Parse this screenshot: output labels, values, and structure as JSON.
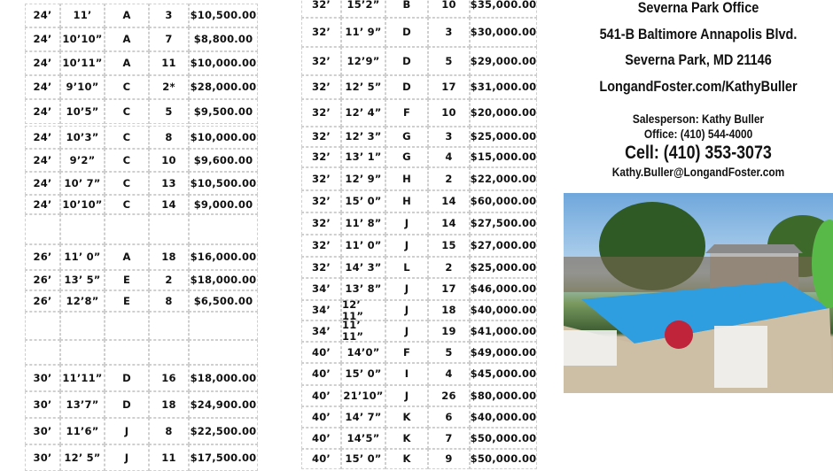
{
  "left_table": {
    "rows": [
      [
        "24’",
        "11’",
        "A",
        "3",
        "$10,500.00"
      ],
      [
        "24’",
        "10’10”",
        "A",
        "7",
        "$8,800.00"
      ],
      [
        "24’",
        "10’11”",
        "A",
        "11",
        "$10,000.00"
      ],
      [
        "24’",
        "9’10”",
        "C",
        "2*",
        "$28,000.00"
      ],
      [
        "24’",
        "10’5”",
        "C",
        "5",
        "$9,500.00"
      ],
      [
        "24’",
        "10’3”",
        "C",
        "8",
        "$10,000.00"
      ],
      [
        "24’",
        "9’2”",
        "C",
        "10",
        "$9,600.00"
      ],
      [
        "24’",
        "10’ 7”",
        "C",
        "13",
        "$10,500.00"
      ],
      [
        "24’",
        "10’10”",
        "C",
        "14",
        "$9,000.00"
      ],
      [
        "",
        "",
        "",
        "",
        ""
      ],
      [
        "26’",
        "11’ 0”",
        "A",
        "18",
        "$16,000.00"
      ],
      [
        "26’",
        "13’ 5”",
        "E",
        "2",
        "$18,000.00"
      ],
      [
        "26’",
        "12’8”",
        "E",
        "8",
        "$6,500.00"
      ],
      [
        "",
        "",
        "",
        "",
        ""
      ],
      [
        "",
        "",
        "",
        "",
        ""
      ],
      [
        "30’",
        "11’11”",
        "D",
        "16",
        "$18,000.00"
      ],
      [
        "30’",
        "13’7”",
        "D",
        "18",
        "$24,900.00"
      ],
      [
        "30’",
        "11’6”",
        "J",
        "8",
        "$22,500.00"
      ],
      [
        "30’",
        "12’ 5”",
        "J",
        "11",
        "$17,500.00"
      ]
    ]
  },
  "right_table": {
    "rows": [
      [
        "32’",
        "15’2”",
        "B",
        "10",
        "$35,000.00"
      ],
      [
        "32’",
        "11’ 9”",
        "D",
        "3",
        "$30,000.00"
      ],
      [
        "32’",
        "12’9”",
        "D",
        "5",
        "$29,000.00"
      ],
      [
        "32’",
        "12’ 5”",
        "D",
        "17",
        "$31,000.00"
      ],
      [
        "32’",
        "12’ 4”",
        "F",
        "10",
        "$20,000.00"
      ],
      [
        "32’",
        "12’ 3”",
        "G",
        "3",
        "$25,000.00"
      ],
      [
        "32’",
        "13’ 1”",
        "G",
        "4",
        "$15,000.00"
      ],
      [
        "32’",
        "12’ 9”",
        "H",
        "2",
        "$22,000.00"
      ],
      [
        "32’",
        "15’ 0”",
        "H",
        "14",
        "$60,000.00"
      ],
      [
        "32’",
        "11’ 8”",
        "J",
        "14",
        "$27,500.00"
      ],
      [
        "32’",
        "11’ 0”",
        "J",
        "15",
        "$27,000.00"
      ],
      [
        "32’",
        "14’ 3”",
        "L",
        "2",
        "$25,000.00"
      ],
      [
        "34’",
        "13’ 8”",
        "J",
        "17",
        "$46,000.00"
      ],
      [
        "34’",
        "12’ 11”",
        "J",
        "18",
        "$40,000.00"
      ],
      [
        "34’",
        "11’ 11”",
        "J",
        "19",
        "$41,000.00"
      ],
      [
        "40’",
        "14’0”",
        "F",
        "5",
        "$49,000.00"
      ],
      [
        "40’",
        "15’ 0”",
        "I",
        "4",
        "$45,000.00"
      ],
      [
        "40’",
        "21’10”",
        "J",
        "26",
        "$80,000.00"
      ],
      [
        "40’",
        "14’ 7”",
        "K",
        "6",
        "$40,000.00"
      ],
      [
        "40’",
        "14’5”",
        "K",
        "7",
        "$50,000.00"
      ],
      [
        "40’",
        "15’ 0”",
        "K",
        "9",
        "$50,000.00"
      ]
    ]
  },
  "office": {
    "name": "Severna Park Office",
    "address": "541-B Baltimore Annapolis Blvd.",
    "city": "Severna Park, MD 21146",
    "website": "LongandFoster.com/KathyBuller",
    "salesperson": "Salesperson: Kathy Buller",
    "office_phone": "Office: (410)  544-4000",
    "cell": "Cell: (410) 353-3073",
    "email": "Kathy.Buller@LongandFoster.com"
  }
}
